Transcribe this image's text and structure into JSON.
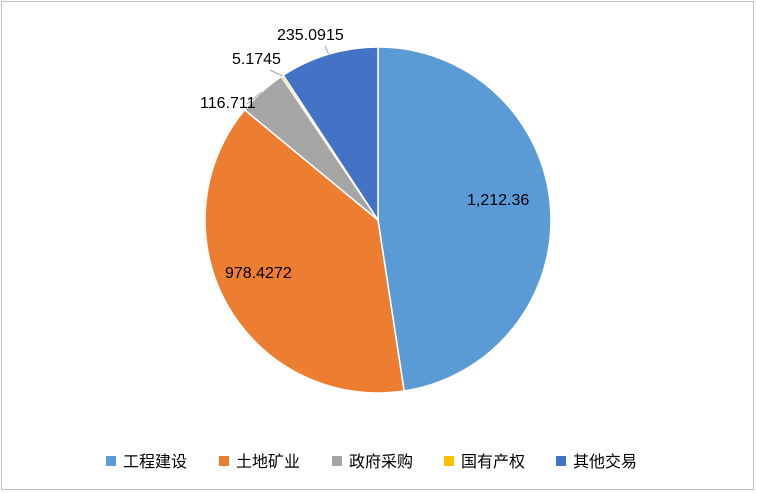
{
  "chart_data": {
    "type": "pie",
    "categories": [
      "工程建设",
      "土地矿业",
      "政府采购",
      "国有产权",
      "其他交易"
    ],
    "values": [
      1212.36,
      978.4272,
      116.711,
      5.1745,
      235.0915
    ],
    "data_labels": [
      "1,212.36",
      "978.4272",
      "116.711",
      "5.1745",
      "235.0915"
    ],
    "colors": [
      "#5B9BD5",
      "#ED7D31",
      "#A5A5A5",
      "#FFC000",
      "#4472C4"
    ],
    "legend_position": "bottom",
    "start_angle": "12 o'clock",
    "direction": "clockwise"
  }
}
